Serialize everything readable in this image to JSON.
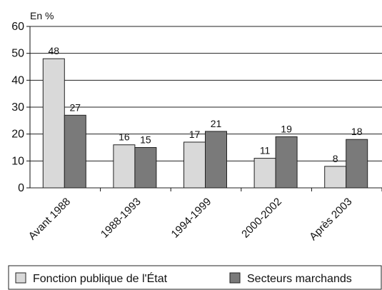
{
  "chart_data": {
    "type": "bar",
    "y_label": "En %",
    "categories": [
      "Avant 1988",
      "1988-1993",
      "1994-1999",
      "2000-2002",
      "Après 2003"
    ],
    "series": [
      {
        "name": "Fonction publique de l'État",
        "color": "#d9d9d9",
        "values": [
          48,
          16,
          17,
          11,
          8
        ]
      },
      {
        "name": "Secteurs marchands",
        "color": "#7a7a7a",
        "values": [
          27,
          15,
          21,
          19,
          18
        ]
      }
    ],
    "ylim": [
      0,
      60
    ],
    "yticks": [
      0,
      10,
      20,
      30,
      40,
      50,
      60
    ],
    "grid": true,
    "legend": "bottom"
  }
}
